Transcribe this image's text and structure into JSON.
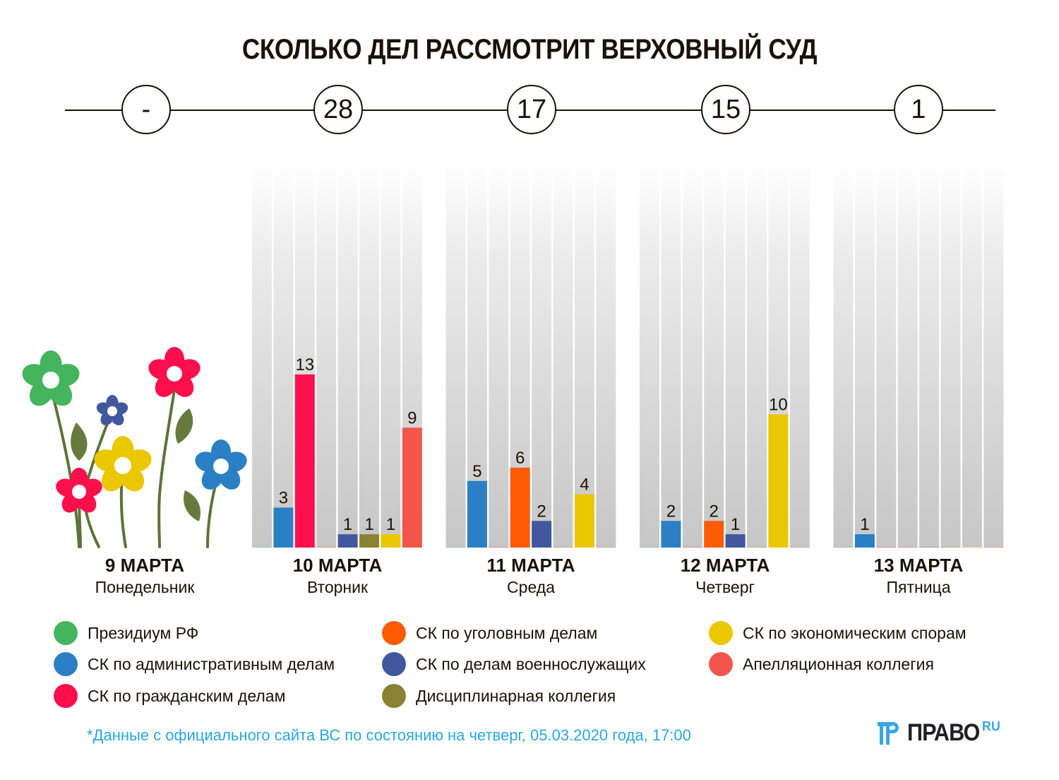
{
  "title": "СКОЛЬКО ДЕЛ РАССМОТРИТ ВЕРХОВНЫЙ СУД",
  "totals": [
    "-",
    "28",
    "17",
    "15",
    "1"
  ],
  "days": [
    {
      "date": "9 МАРТА",
      "weekday": "Понедельник"
    },
    {
      "date": "10 МАРТА",
      "weekday": "Вторник"
    },
    {
      "date": "11 МАРТА",
      "weekday": "Среда"
    },
    {
      "date": "12 МАРТА",
      "weekday": "Четверг"
    },
    {
      "date": "13 МАРТА",
      "weekday": "Пятница"
    }
  ],
  "legend": [
    {
      "label": "Президиум РФ",
      "color": "#44b55c"
    },
    {
      "label": "СК по административным делам",
      "color": "#2b80c5"
    },
    {
      "label": "СК по гражданским делам",
      "color": "#fd0f4c"
    },
    {
      "label": "СК по уголовным делам",
      "color": "#ff5a04"
    },
    {
      "label": "СК по делам военнослужащих",
      "color": "#41589f"
    },
    {
      "label": "Дисциплинарная коллегия",
      "color": "#8a8233"
    },
    {
      "label": "СК по экономическим спорам",
      "color": "#ebc700"
    },
    {
      "label": "Апелляционная коллегия",
      "color": "#f2564a"
    }
  ],
  "chart_data": {
    "type": "bar",
    "title": "СКОЛЬКО ДЕЛ РАССМОТРИТ ВЕРХОВНЫЙ СУД",
    "xlabel": "",
    "ylabel": "",
    "categories": [
      "10 МАРТА",
      "11 МАРТА",
      "12 МАРТА",
      "13 МАРТА"
    ],
    "ylim": [
      0,
      28
    ],
    "grid": false,
    "legend_position": "bottom",
    "series": [
      {
        "name": "Президиум РФ",
        "color": "#44b55c",
        "values": [
          0,
          0,
          0,
          0
        ]
      },
      {
        "name": "СК по административным делам",
        "color": "#2b80c5",
        "values": [
          3,
          5,
          2,
          1
        ]
      },
      {
        "name": "СК по гражданским делам",
        "color": "#fd0f4c",
        "values": [
          13,
          0,
          0,
          0
        ]
      },
      {
        "name": "СК по уголовным делам",
        "color": "#ff5a04",
        "values": [
          0,
          6,
          2,
          0
        ]
      },
      {
        "name": "СК по делам военнослужащих",
        "color": "#41589f",
        "values": [
          1,
          2,
          1,
          0
        ]
      },
      {
        "name": "Дисциплинарная коллегия",
        "color": "#8a8233",
        "values": [
          1,
          0,
          0,
          0
        ]
      },
      {
        "name": "СК по экономическим спорам",
        "color": "#ebc700",
        "values": [
          1,
          4,
          10,
          0
        ]
      },
      {
        "name": "Апелляционная коллегия",
        "color": "#f2564a",
        "values": [
          9,
          0,
          0,
          0
        ]
      }
    ],
    "notes": "9 МАРТА (Понедельник) has no hearings, shown as '-' and decorated with flowers"
  },
  "footnote": "*Данные с официального сайта ВС по состоянию на четверг, 05.03.2020 года, 17:00",
  "logo": {
    "name": "ПРАВО",
    "suffix": "RU"
  }
}
